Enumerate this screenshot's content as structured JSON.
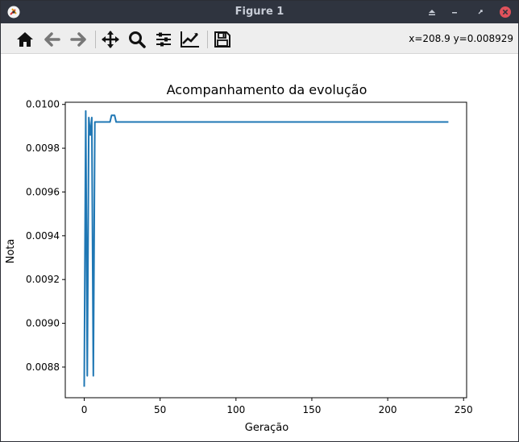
{
  "window": {
    "title": "Figure 1",
    "controls": [
      "shade-icon",
      "minimize-icon",
      "restore-icon",
      "close-icon"
    ]
  },
  "toolbar": {
    "buttons": [
      {
        "name": "home-button",
        "icon": "home-icon"
      },
      {
        "name": "back-button",
        "icon": "arrow-left-icon"
      },
      {
        "name": "forward-button",
        "icon": "arrow-right-icon"
      },
      {
        "name": "pan-button",
        "icon": "move-icon"
      },
      {
        "name": "zoom-button",
        "icon": "magnifier-icon"
      },
      {
        "name": "configure-subplots-button",
        "icon": "sliders-icon"
      },
      {
        "name": "edit-axis-button",
        "icon": "line-chart-icon"
      },
      {
        "name": "save-button",
        "icon": "floppy-disk-icon"
      }
    ],
    "coordinates": "x=208.9 y=0.008929"
  },
  "colors": {
    "titlebar": "#2f343f",
    "line": "#1f77b4",
    "close": "#e0525b"
  },
  "chart_data": {
    "type": "line",
    "title": "Acompanhamento da evolução",
    "xlabel": "Geração",
    "ylabel": "Nota",
    "xlim": [
      -12.5,
      252
    ],
    "ylim": [
      0.00866,
      0.01001
    ],
    "xticks": [
      0,
      50,
      100,
      150,
      200,
      250
    ],
    "xtick_labels": [
      "0",
      "50",
      "100",
      "150",
      "200",
      "250"
    ],
    "yticks": [
      0.0088,
      0.009,
      0.0092,
      0.0094,
      0.0096,
      0.0098,
      0.01
    ],
    "ytick_labels": [
      "0.0088",
      "0.0090",
      "0.0092",
      "0.0094",
      "0.0096",
      "0.0098",
      "0.0100"
    ],
    "grid": false,
    "series": [
      {
        "x": [
          0,
          1,
          2,
          3,
          4,
          5,
          6,
          7,
          8,
          9,
          10,
          11,
          12,
          13,
          14,
          15,
          16,
          17,
          18,
          19,
          20,
          21,
          22,
          23,
          24,
          240
        ],
        "y": [
          0.00871,
          0.00997,
          0.00876,
          0.00994,
          0.00986,
          0.00994,
          0.00876,
          0.00992,
          0.00992,
          0.00992,
          0.00992,
          0.00992,
          0.00992,
          0.00992,
          0.00992,
          0.00992,
          0.00992,
          0.00992,
          0.00995,
          0.00995,
          0.00995,
          0.00992,
          0.00992,
          0.00992,
          0.00992,
          0.00992
        ]
      }
    ]
  }
}
